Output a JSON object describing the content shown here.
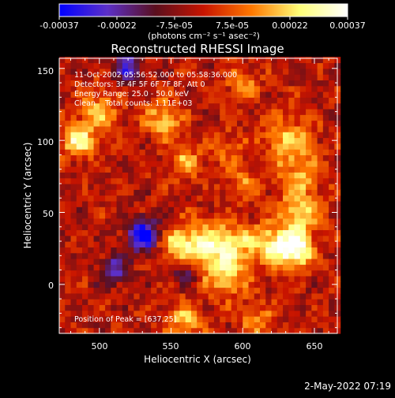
{
  "chart_data": {
    "type": "heatmap",
    "title": "Reconstructed RHESSI Image",
    "xlabel": "Heliocentric X (arcsec)",
    "ylabel": "Heliocentric Y (arcsec)",
    "xlim": [
      472,
      666
    ],
    "ylim": [
      -34,
      157
    ],
    "x_ticks": [
      500,
      550,
      600,
      650
    ],
    "y_ticks": [
      0,
      50,
      100,
      150
    ],
    "colorbar": {
      "range": [
        -0.00037,
        0.00037
      ],
      "tick_labels": [
        "-0.00037",
        "-0.00022",
        "-7.5e-05",
        "7.5e-05",
        "0.00022",
        "0.00037"
      ],
      "unit_label": "(photons cm⁻² s⁻¹ asec⁻²)",
      "colormap": [
        "#0000ff",
        "#5c30c8",
        "#5a0f1e",
        "#c81400",
        "#ff7800",
        "#ffff78",
        "#ffffff"
      ]
    },
    "annotations": [
      "11-Oct-2002 05:56:52.000 to 05:58:36.000",
      "Detectors: 3F 4F 5F 6F 7F 8F, Att 0",
      "Energy Range: 25.0 - 50.0 keV",
      "Clean    Total counts: 1.11E+03"
    ],
    "peak_label": "Position of Peak = [637,25]",
    "peak": {
      "x": 637,
      "y": 25
    },
    "hotspots": [
      {
        "x": 637,
        "y": 25,
        "sigma": 9,
        "amp": 1.0
      },
      {
        "x": 620,
        "y": 28,
        "sigma": 10,
        "amp": 0.7
      },
      {
        "x": 575,
        "y": 25,
        "sigma": 12,
        "amp": 0.75
      },
      {
        "x": 595,
        "y": 30,
        "sigma": 9,
        "amp": 0.55
      },
      {
        "x": 555,
        "y": 28,
        "sigma": 9,
        "amp": 0.6
      },
      {
        "x": 590,
        "y": 5,
        "sigma": 10,
        "amp": 0.55
      },
      {
        "x": 640,
        "y": 50,
        "sigma": 10,
        "amp": 0.6
      },
      {
        "x": 632,
        "y": 100,
        "sigma": 12,
        "amp": 0.55
      },
      {
        "x": 640,
        "y": 75,
        "sigma": 10,
        "amp": 0.45
      },
      {
        "x": 485,
        "y": 100,
        "sigma": 8,
        "amp": 0.8
      },
      {
        "x": 500,
        "y": 120,
        "sigma": 10,
        "amp": 0.55
      },
      {
        "x": 545,
        "y": 115,
        "sigma": 9,
        "amp": 0.6
      },
      {
        "x": 560,
        "y": 85,
        "sigma": 8,
        "amp": 0.5
      },
      {
        "x": 600,
        "y": 140,
        "sigma": 8,
        "amp": 0.45
      },
      {
        "x": 560,
        "y": -25,
        "sigma": 9,
        "amp": 0.55
      },
      {
        "x": 610,
        "y": -25,
        "sigma": 8,
        "amp": 0.45
      },
      {
        "x": 600,
        "y": 70,
        "sigma": 8,
        "amp": 0.4
      },
      {
        "x": 590,
        "y": 95,
        "sigma": 8,
        "amp": 0.35
      }
    ],
    "coldspots": [
      {
        "x": 530,
        "y": 35,
        "sigma": 8,
        "amp": 1.0
      },
      {
        "x": 520,
        "y": 150,
        "sigma": 7,
        "amp": 0.7
      },
      {
        "x": 560,
        "y": 10,
        "sigma": 6,
        "amp": 0.6
      },
      {
        "x": 510,
        "y": 10,
        "sigma": 7,
        "amp": 0.6
      }
    ]
  },
  "footer_timestamp": "2-May-2022 07:19"
}
